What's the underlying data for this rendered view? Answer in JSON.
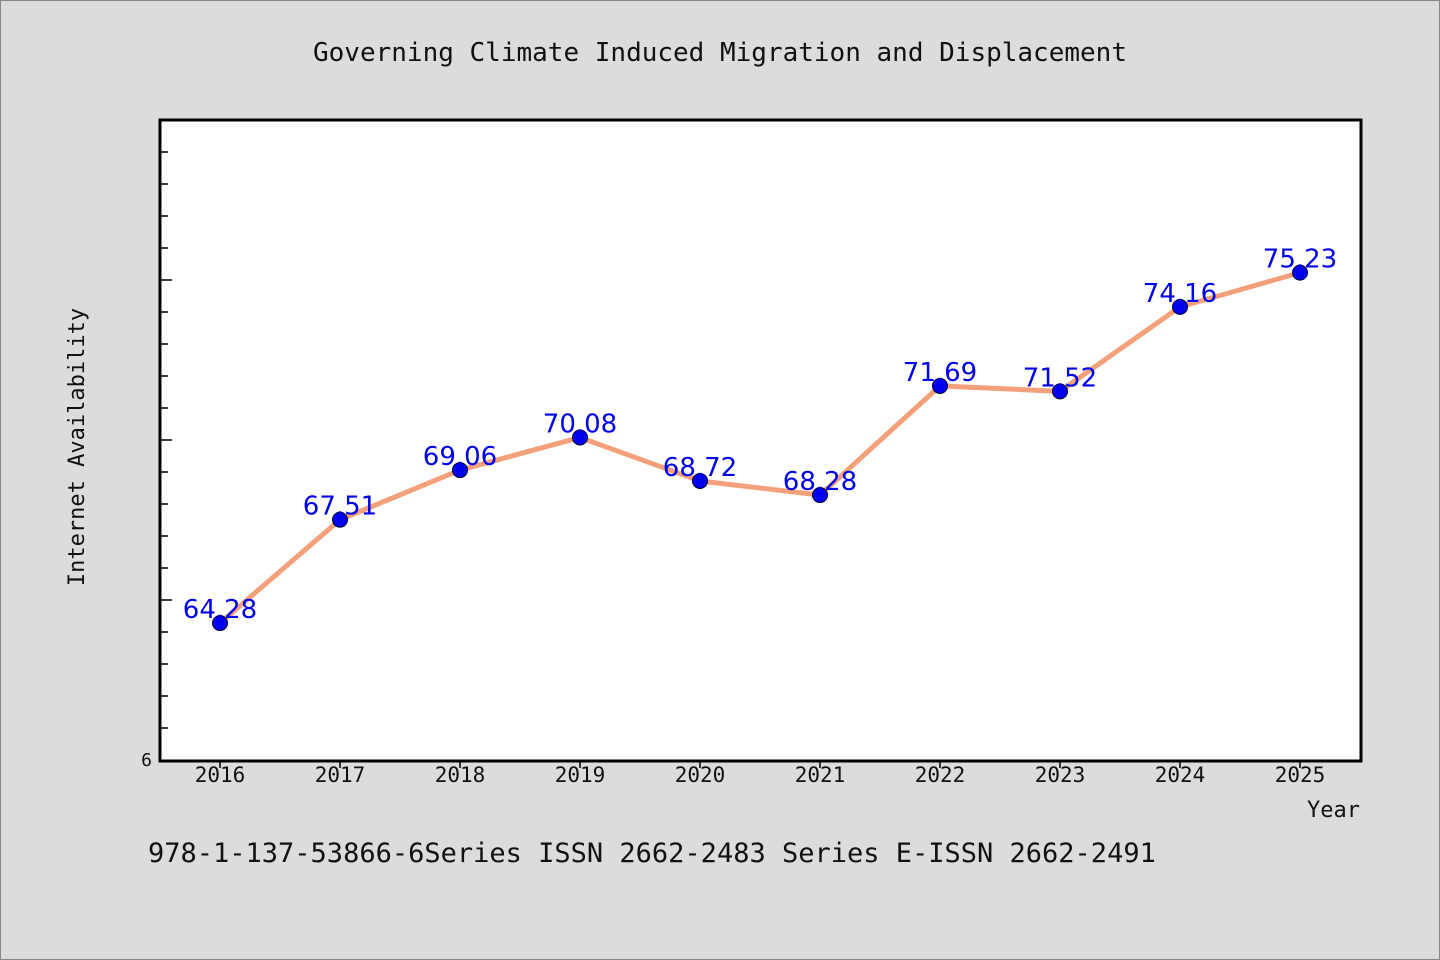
{
  "chart_data": {
    "type": "line",
    "title": "Governing Climate Induced Migration and Displacement",
    "xlabel": "Year",
    "ylabel": "Internet Availability",
    "x": [
      "2016",
      "2017",
      "2018",
      "2019",
      "2020",
      "2021",
      "2022",
      "2023",
      "2024",
      "2025"
    ],
    "series": [
      {
        "values": [
          64.28,
          67.51,
          69.06,
          70.08,
          68.72,
          68.28,
          71.69,
          71.52,
          74.16,
          75.23
        ],
        "value_labels": [
          "64.28",
          "67.51",
          "69.06",
          "70.08",
          "68.72",
          "68.28",
          "71.69",
          "71.52",
          "74.16",
          "75.23"
        ],
        "line_color": "#f4a07a",
        "marker_color": "#0000ee"
      }
    ],
    "y_tick_labels": [
      "6"
    ],
    "ylim": [
      60,
      80
    ],
    "grid": false,
    "legend": "none",
    "label_color": "#0000ee"
  },
  "footer": {
    "text": "978-1-137-53866-6Series ISSN 2662-2483 Series E-ISSN 2662-2491"
  }
}
